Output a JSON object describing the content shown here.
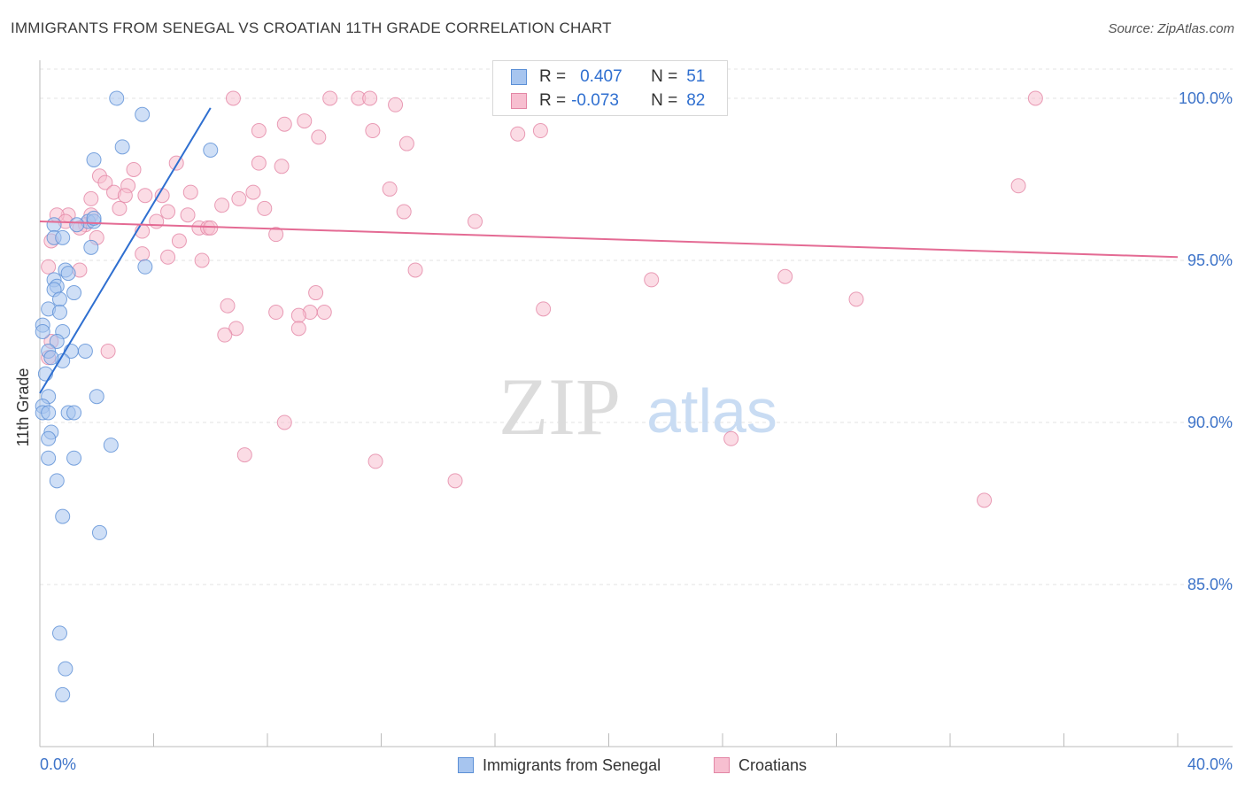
{
  "title": "IMMIGRANTS FROM SENEGAL VS CROATIAN 11TH GRADE CORRELATION CHART",
  "source": "Source: ZipAtlas.com",
  "watermark": {
    "zip": "ZIP",
    "atlas": "atlas"
  },
  "legend": {
    "rows": [
      {
        "r_label": "R =",
        "r_value": "0.407",
        "n_label": "N =",
        "n_value": "51",
        "color": "#a7c5ef",
        "stroke": "#5b8fd6"
      },
      {
        "r_label": "R =",
        "r_value": "-0.073",
        "n_label": "N =",
        "n_value": "82",
        "color": "#f7bfd0",
        "stroke": "#e386a5"
      }
    ]
  },
  "bottom_legend": {
    "series1": "Immigrants from Senegal",
    "series2": "Croatians"
  },
  "chart_data": {
    "type": "scatter",
    "title": "IMMIGRANTS FROM SENEGAL VS CROATIAN 11TH GRADE CORRELATION CHART",
    "xlabel": "",
    "ylabel": "11th Grade",
    "xlim": [
      0,
      40
    ],
    "ylim": [
      80.0,
      100.9
    ],
    "x_tick_labels": [
      "0.0%",
      "40.0%"
    ],
    "y_ticks": [
      85,
      90,
      95,
      100
    ],
    "y_tick_labels": [
      "85.0%",
      "90.0%",
      "95.0%",
      "100.0%"
    ],
    "colors": {
      "senegal_fill": "#a7c5ef",
      "senegal_stroke": "#5b8fd6",
      "senegal_line": "#2f6fd0",
      "croatian_fill": "#f7bfd0",
      "croatian_stroke": "#e386a5",
      "croatian_line": "#e46b94",
      "tick_text": "#3e74c9",
      "grid": "#e3e3e3"
    },
    "series": [
      {
        "name": "Immigrants from Senegal",
        "trend": {
          "x": [
            0.0,
            6.0
          ],
          "y": [
            90.9,
            99.7
          ]
        },
        "points": [
          [
            2.7,
            100.0
          ],
          [
            3.6,
            99.5
          ],
          [
            2.9,
            98.5
          ],
          [
            6.0,
            98.4
          ],
          [
            1.9,
            98.1
          ],
          [
            1.7,
            96.2
          ],
          [
            1.3,
            96.1
          ],
          [
            0.5,
            96.1
          ],
          [
            0.5,
            95.7
          ],
          [
            0.8,
            95.7
          ],
          [
            1.9,
            96.2
          ],
          [
            1.9,
            96.3
          ],
          [
            1.8,
            95.4
          ],
          [
            3.7,
            94.8
          ],
          [
            0.9,
            94.7
          ],
          [
            1.0,
            94.6
          ],
          [
            0.5,
            94.4
          ],
          [
            0.6,
            94.2
          ],
          [
            0.5,
            94.1
          ],
          [
            1.2,
            94.0
          ],
          [
            0.7,
            93.8
          ],
          [
            0.3,
            93.5
          ],
          [
            0.7,
            93.4
          ],
          [
            0.1,
            93.0
          ],
          [
            0.8,
            92.8
          ],
          [
            0.1,
            92.8
          ],
          [
            0.6,
            92.5
          ],
          [
            0.3,
            92.2
          ],
          [
            1.1,
            92.2
          ],
          [
            1.6,
            92.2
          ],
          [
            0.8,
            91.9
          ],
          [
            0.2,
            91.5
          ],
          [
            0.3,
            90.8
          ],
          [
            2.0,
            90.8
          ],
          [
            0.1,
            90.5
          ],
          [
            0.1,
            90.3
          ],
          [
            0.3,
            90.3
          ],
          [
            1.0,
            90.3
          ],
          [
            1.2,
            90.3
          ],
          [
            0.4,
            89.7
          ],
          [
            0.3,
            89.5
          ],
          [
            2.5,
            89.3
          ],
          [
            0.3,
            88.9
          ],
          [
            1.2,
            88.9
          ],
          [
            0.6,
            88.2
          ],
          [
            0.8,
            87.1
          ],
          [
            2.1,
            86.6
          ],
          [
            0.7,
            83.5
          ],
          [
            0.9,
            82.4
          ],
          [
            0.8,
            81.6
          ],
          [
            0.4,
            92.0
          ]
        ]
      },
      {
        "name": "Croatians",
        "trend": {
          "x": [
            0.0,
            40.0
          ],
          "y": [
            96.2,
            95.1
          ]
        },
        "points": [
          [
            6.8,
            100.0
          ],
          [
            10.2,
            100.0
          ],
          [
            11.2,
            100.0
          ],
          [
            11.6,
            100.0
          ],
          [
            16.9,
            100.0
          ],
          [
            35.0,
            100.0
          ],
          [
            9.3,
            99.3
          ],
          [
            8.6,
            99.2
          ],
          [
            7.7,
            99.0
          ],
          [
            11.7,
            99.0
          ],
          [
            16.8,
            98.9
          ],
          [
            9.8,
            98.8
          ],
          [
            12.9,
            98.6
          ],
          [
            4.8,
            98.0
          ],
          [
            7.7,
            98.0
          ],
          [
            8.5,
            97.9
          ],
          [
            3.3,
            97.8
          ],
          [
            2.1,
            97.6
          ],
          [
            2.3,
            97.4
          ],
          [
            3.1,
            97.3
          ],
          [
            2.6,
            97.1
          ],
          [
            3.0,
            97.0
          ],
          [
            5.3,
            97.1
          ],
          [
            7.5,
            97.1
          ],
          [
            12.3,
            97.2
          ],
          [
            34.4,
            97.3
          ],
          [
            1.8,
            96.9
          ],
          [
            3.7,
            97.0
          ],
          [
            4.3,
            97.0
          ],
          [
            7.0,
            96.9
          ],
          [
            6.4,
            96.7
          ],
          [
            7.9,
            96.6
          ],
          [
            2.8,
            96.6
          ],
          [
            4.5,
            96.5
          ],
          [
            5.2,
            96.4
          ],
          [
            1.0,
            96.4
          ],
          [
            0.6,
            96.4
          ],
          [
            1.8,
            96.4
          ],
          [
            12.8,
            96.5
          ],
          [
            4.1,
            96.2
          ],
          [
            15.3,
            96.2
          ],
          [
            1.6,
            96.1
          ],
          [
            1.4,
            96.0
          ],
          [
            0.9,
            96.2
          ],
          [
            5.6,
            96.0
          ],
          [
            5.9,
            96.0
          ],
          [
            6.0,
            96.0
          ],
          [
            3.6,
            95.9
          ],
          [
            8.3,
            95.8
          ],
          [
            2.0,
            95.7
          ],
          [
            0.4,
            95.6
          ],
          [
            4.9,
            95.6
          ],
          [
            3.6,
            95.2
          ],
          [
            4.5,
            95.1
          ],
          [
            5.7,
            95.0
          ],
          [
            0.3,
            94.8
          ],
          [
            1.4,
            94.7
          ],
          [
            13.2,
            94.7
          ],
          [
            21.5,
            94.4
          ],
          [
            26.2,
            94.5
          ],
          [
            9.7,
            94.0
          ],
          [
            28.7,
            93.8
          ],
          [
            6.6,
            93.6
          ],
          [
            17.7,
            93.5
          ],
          [
            8.3,
            93.4
          ],
          [
            9.5,
            93.4
          ],
          [
            10.0,
            93.4
          ],
          [
            9.1,
            93.3
          ],
          [
            9.1,
            92.9
          ],
          [
            6.9,
            92.9
          ],
          [
            6.5,
            92.7
          ],
          [
            0.4,
            92.5
          ],
          [
            2.4,
            92.2
          ],
          [
            8.6,
            90.0
          ],
          [
            24.3,
            89.5
          ],
          [
            7.2,
            89.0
          ],
          [
            11.8,
            88.8
          ],
          [
            14.6,
            88.2
          ],
          [
            33.2,
            87.6
          ],
          [
            17.6,
            99.0
          ],
          [
            0.3,
            92.0
          ],
          [
            12.5,
            99.8
          ]
        ]
      }
    ]
  }
}
